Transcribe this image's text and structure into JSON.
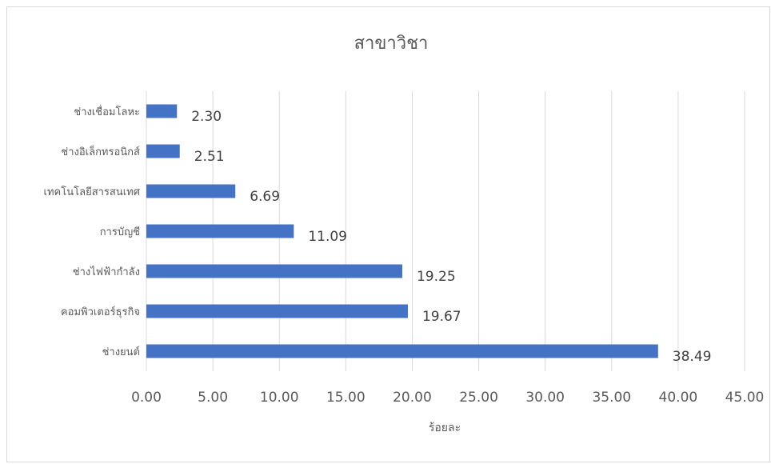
{
  "chart_data": {
    "type": "bar",
    "orientation": "horizontal",
    "title": "สาขาวิชา",
    "xlabel": "ร้อยละ",
    "ylabel": "",
    "categories": [
      "ช่างเชื่อมโลหะ",
      "ช่างอิเล็กทรอนิกส์",
      "เทคโนโลยีสารสนเทศ",
      "การบัญชี",
      "ช่างไฟฟ้ากำลัง",
      "คอมพิวเตอร์ธุรกิจ",
      "ช่างยนต์"
    ],
    "values": [
      2.3,
      2.51,
      6.69,
      11.09,
      19.25,
      19.67,
      38.49
    ],
    "value_labels": [
      "2.30",
      "2.51",
      "6.69",
      "11.09",
      "19.25",
      "19.67",
      "38.49"
    ],
    "xlim": [
      0,
      45
    ],
    "xticks": [
      0,
      5,
      10,
      15,
      20,
      25,
      30,
      35,
      40,
      45
    ],
    "xtick_labels": [
      "0.00",
      "5.00",
      "10.00",
      "15.00",
      "20.00",
      "25.00",
      "30.00",
      "35.00",
      "40.00",
      "45.00"
    ],
    "grid": "vertical",
    "legend": "none",
    "colors": {
      "bar": "#4472c4",
      "grid": "#d9d9d9",
      "text": "#595959"
    }
  }
}
